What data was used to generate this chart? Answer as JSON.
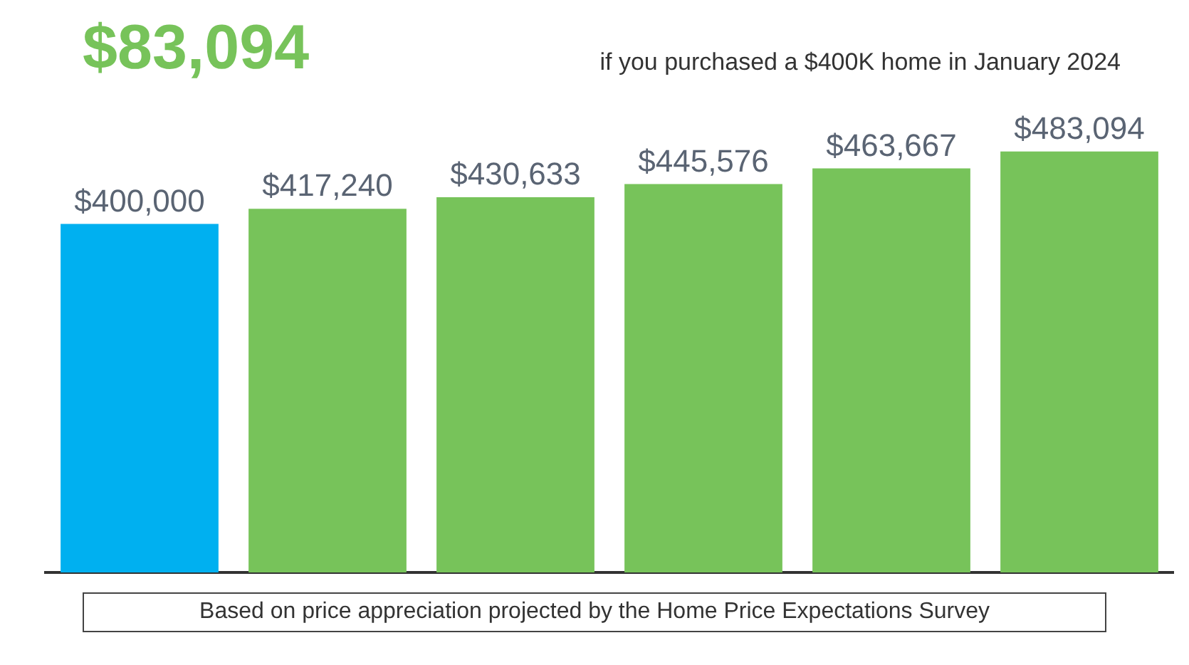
{
  "chart_data": {
    "type": "bar",
    "title": "$83,094",
    "subtitle": "if you purchased a $400K home in January 2024",
    "categories": [
      null,
      null,
      null,
      null,
      null,
      null
    ],
    "values": [
      400000,
      417240,
      430633,
      445576,
      463667,
      483094
    ],
    "colors": [
      "#00b0f0",
      "#77c35a",
      "#77c35a",
      "#77c35a",
      "#77c35a",
      "#77c35a"
    ],
    "value_labels": [
      "$400,000",
      "$417,240",
      "$430,633",
      "$445,576",
      "$463,667",
      "$483,094"
    ],
    "annotations": [
      "Based on price appreciation projected by the Home Price Expectations Survey"
    ],
    "grid": false,
    "legend": false
  }
}
